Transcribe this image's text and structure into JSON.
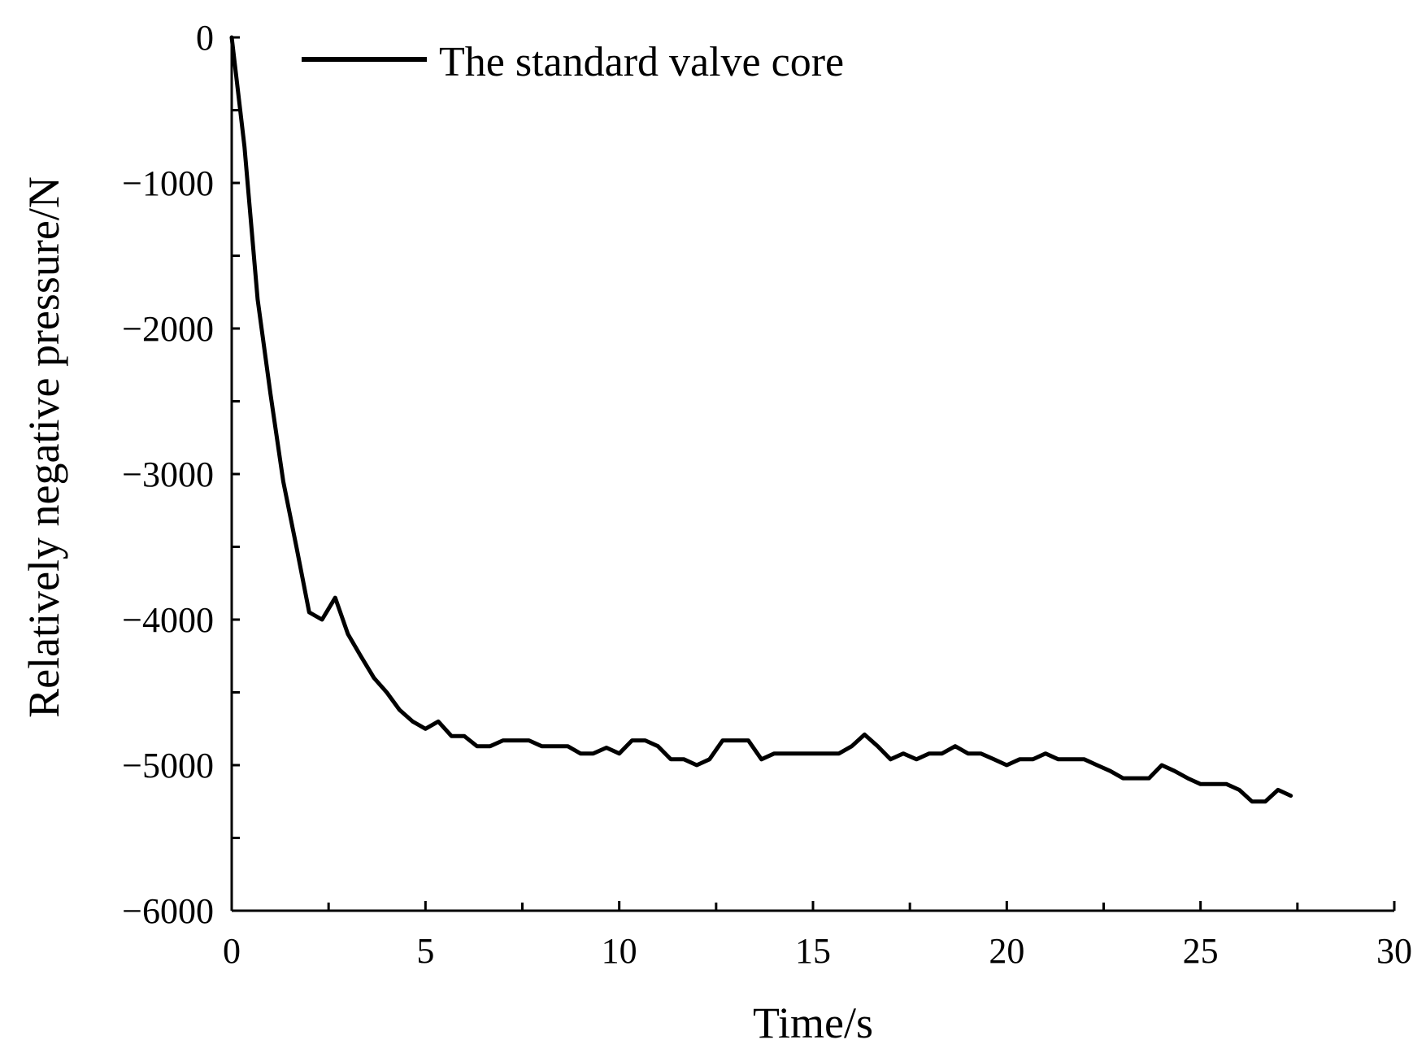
{
  "chart_data": {
    "type": "line",
    "title": "",
    "xlabel": "Time/s",
    "ylabel": "Relatively negative pressure/N",
    "xlim": [
      0,
      30
    ],
    "ylim": [
      -6000,
      0
    ],
    "x_ticks": [
      0,
      5,
      10,
      15,
      20,
      25,
      30
    ],
    "x_tick_labels": [
      "0",
      "5",
      "10",
      "15",
      "20",
      "25",
      "30"
    ],
    "y_ticks": [
      0,
      -1000,
      -2000,
      -3000,
      -4000,
      -5000,
      -6000
    ],
    "y_tick_labels": [
      "0",
      "−1000",
      "−2000",
      "−3000",
      "−4000",
      "−5000",
      "−6000"
    ],
    "grid": false,
    "legend_position": "top-left",
    "line_color": "#000000",
    "series": [
      {
        "name": "The standard valve core",
        "x": [
          0,
          0.33,
          0.67,
          1.0,
          1.33,
          1.67,
          2.0,
          2.33,
          2.67,
          3.0,
          3.33,
          3.67,
          4.0,
          4.33,
          4.67,
          5.0,
          5.33,
          5.67,
          6.0,
          6.33,
          6.67,
          7.0,
          7.33,
          7.67,
          8.0,
          8.33,
          8.67,
          9.0,
          9.33,
          9.67,
          10.0,
          10.33,
          10.67,
          11.0,
          11.33,
          11.67,
          12.0,
          12.33,
          12.67,
          13.0,
          13.33,
          13.67,
          14.0,
          14.33,
          14.67,
          15.0,
          15.33,
          15.67,
          16.0,
          16.33,
          16.67,
          17.0,
          17.33,
          17.67,
          18.0,
          18.33,
          18.67,
          19.0,
          19.33,
          19.67,
          20.0,
          20.33,
          20.67,
          21.0,
          21.33,
          21.67,
          22.0,
          22.33,
          22.67,
          23.0,
          23.33,
          23.67,
          24.0,
          24.33,
          24.67,
          25.0,
          25.33,
          25.67,
          26.0,
          26.33,
          26.67,
          27.0,
          27.33
        ],
        "values": [
          0,
          -750,
          -1800,
          -2450,
          -3050,
          -3500,
          -3950,
          -4000,
          -3850,
          -4100,
          -4250,
          -4400,
          -4500,
          -4620,
          -4700,
          -4750,
          -4700,
          -4800,
          -4800,
          -4870,
          -4870,
          -4830,
          -4830,
          -4830,
          -4870,
          -4870,
          -4870,
          -4920,
          -4920,
          -4880,
          -4920,
          -4830,
          -4830,
          -4870,
          -4960,
          -4960,
          -5000,
          -4960,
          -4830,
          -4830,
          -4830,
          -4960,
          -4920,
          -4920,
          -4920,
          -4920,
          -4920,
          -4920,
          -4870,
          -4790,
          -4870,
          -4960,
          -4920,
          -4960,
          -4920,
          -4920,
          -4870,
          -4920,
          -4920,
          -4960,
          -5000,
          -4960,
          -4960,
          -4920,
          -4960,
          -4960,
          -4960,
          -5000,
          -5040,
          -5090,
          -5090,
          -5090,
          -5000,
          -5040,
          -5090,
          -5130,
          -5130,
          -5130,
          -5170,
          -5250,
          -5250,
          -5170,
          -5210
        ]
      }
    ]
  }
}
